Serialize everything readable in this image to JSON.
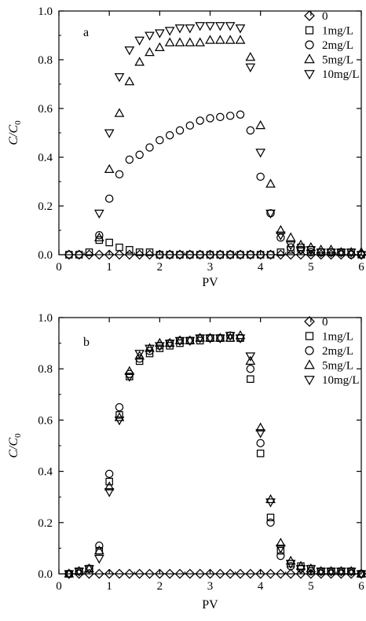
{
  "chart_data": [
    {
      "type": "scatter",
      "panel_label": "a",
      "xlabel": "PV",
      "ylabel": "C/C0",
      "ylabel_main": "C/C",
      "ylabel_sub": "0",
      "xlim": [
        0,
        6
      ],
      "ylim": [
        0,
        1.0
      ],
      "xticks": [
        "0",
        "1",
        "2",
        "3",
        "4",
        "5",
        "6"
      ],
      "yticks": [
        "0.0",
        "0.2",
        "0.4",
        "0.6",
        "0.8",
        "1.0"
      ],
      "legend_position": "top-right",
      "series": [
        {
          "name": "0",
          "marker": "diamond",
          "x": [
            0.2,
            0.4,
            0.6,
            0.8,
            1.0,
            1.2,
            1.4,
            1.6,
            1.8,
            2.0,
            2.2,
            2.4,
            2.6,
            2.8,
            3.0,
            3.2,
            3.4,
            3.6,
            3.8,
            4.0,
            4.2,
            4.4,
            4.6,
            4.8,
            5.0,
            5.2,
            5.4,
            5.6,
            5.8,
            6.0
          ],
          "y": [
            0,
            0,
            0,
            0,
            0,
            0,
            0,
            0,
            0,
            0,
            0,
            0,
            0,
            0,
            0,
            0,
            0,
            0,
            0,
            0,
            0,
            0,
            0,
            0,
            0,
            0,
            0,
            0,
            0,
            0
          ]
        },
        {
          "name": "1mg/L",
          "marker": "square",
          "x": [
            0.2,
            0.4,
            0.6,
            0.8,
            1.0,
            1.2,
            1.4,
            1.6,
            1.8,
            2.0,
            2.2,
            2.4,
            2.6,
            2.8,
            3.0,
            3.2,
            3.4,
            3.6,
            3.8,
            4.0,
            4.2,
            4.4,
            4.6,
            4.8,
            5.0,
            5.2,
            5.4,
            5.6,
            5.8,
            6.0
          ],
          "y": [
            0,
            0,
            0.01,
            0.06,
            0.05,
            0.03,
            0.02,
            0.01,
            0.01,
            0,
            0,
            0,
            0,
            0,
            0,
            0,
            0,
            0,
            0,
            0,
            0,
            0.01,
            0.02,
            0.03,
            0.02,
            0.01,
            0.01,
            0.01,
            0.01,
            0
          ]
        },
        {
          "name": "2mg/L",
          "marker": "circle",
          "x": [
            0.8,
            1.0,
            1.2,
            1.4,
            1.6,
            1.8,
            2.0,
            2.2,
            2.4,
            2.6,
            2.8,
            3.0,
            3.2,
            3.4,
            3.6,
            3.8,
            4.0,
            4.2,
            4.4,
            4.6,
            4.8,
            5.0,
            5.2,
            5.4,
            5.6,
            5.8,
            6.0
          ],
          "y": [
            0.08,
            0.23,
            0.33,
            0.39,
            0.41,
            0.44,
            0.47,
            0.49,
            0.51,
            0.53,
            0.55,
            0.56,
            0.565,
            0.57,
            0.575,
            0.51,
            0.32,
            0.17,
            0.07,
            0.03,
            0.02,
            0.01,
            0.01,
            0.01,
            0.01,
            0,
            0
          ]
        },
        {
          "name": "5mg/L",
          "marker": "triangle-up",
          "x": [
            0.8,
            1.0,
            1.2,
            1.4,
            1.6,
            1.8,
            2.0,
            2.2,
            2.4,
            2.6,
            2.8,
            3.0,
            3.2,
            3.4,
            3.6,
            3.8,
            4.0,
            4.2,
            4.4,
            4.6,
            4.8,
            5.0,
            5.2,
            5.4,
            5.6,
            5.8,
            6.0
          ],
          "y": [
            0.07,
            0.35,
            0.58,
            0.71,
            0.79,
            0.83,
            0.85,
            0.87,
            0.87,
            0.87,
            0.87,
            0.88,
            0.88,
            0.88,
            0.88,
            0.81,
            0.53,
            0.29,
            0.1,
            0.07,
            0.04,
            0.03,
            0.02,
            0.02,
            0.01,
            0.01,
            0.01
          ]
        },
        {
          "name": "10mg/L",
          "marker": "triangle-down",
          "x": [
            0.8,
            1.0,
            1.2,
            1.4,
            1.6,
            1.8,
            2.0,
            2.2,
            2.4,
            2.6,
            2.8,
            3.0,
            3.2,
            3.4,
            3.6,
            3.8,
            4.0,
            4.2,
            4.4,
            4.6,
            4.8,
            5.0,
            5.2,
            5.4,
            5.6,
            5.8,
            6.0
          ],
          "y": [
            0.17,
            0.5,
            0.73,
            0.84,
            0.88,
            0.9,
            0.91,
            0.92,
            0.93,
            0.93,
            0.94,
            0.94,
            0.94,
            0.94,
            0.93,
            0.77,
            0.42,
            0.17,
            0.08,
            0.04,
            0.02,
            0.02,
            0.01,
            0.01,
            0.01,
            0.01,
            0
          ]
        }
      ]
    },
    {
      "type": "scatter",
      "panel_label": "b",
      "xlabel": "PV",
      "ylabel": "C/C0",
      "ylabel_main": "C/C",
      "ylabel_sub": "0",
      "xlim": [
        0,
        6
      ],
      "ylim": [
        0,
        1.0
      ],
      "xticks": [
        "0",
        "1",
        "2",
        "3",
        "4",
        "5",
        "6"
      ],
      "yticks": [
        "0.0",
        "0.2",
        "0.4",
        "0.6",
        "0.8",
        "1.0"
      ],
      "legend_position": "top-right",
      "series": [
        {
          "name": "0",
          "marker": "diamond",
          "x": [
            0.2,
            0.4,
            0.6,
            0.8,
            1.0,
            1.2,
            1.4,
            1.6,
            1.8,
            2.0,
            2.2,
            2.4,
            2.6,
            2.8,
            3.0,
            3.2,
            3.4,
            3.6,
            3.8,
            4.0,
            4.2,
            4.4,
            4.6,
            4.8,
            5.0,
            5.2,
            5.4,
            5.6,
            5.8,
            6.0
          ],
          "y": [
            0,
            0,
            0,
            0,
            0,
            0,
            0,
            0,
            0,
            0,
            0,
            0,
            0,
            0,
            0,
            0,
            0,
            0,
            0,
            0,
            0,
            0,
            0,
            0,
            0,
            0,
            0,
            0,
            0,
            0
          ]
        },
        {
          "name": "1mg/L",
          "marker": "square",
          "x": [
            0.2,
            0.4,
            0.6,
            0.8,
            1.0,
            1.2,
            1.4,
            1.6,
            1.8,
            2.0,
            2.2,
            2.4,
            2.6,
            2.8,
            3.0,
            3.2,
            3.4,
            3.6,
            3.8,
            4.0,
            4.2,
            4.4,
            4.6,
            4.8,
            5.0,
            5.2,
            5.4,
            5.6,
            5.8,
            6.0
          ],
          "y": [
            0,
            0.01,
            0.02,
            0.09,
            0.36,
            0.62,
            0.77,
            0.83,
            0.86,
            0.88,
            0.89,
            0.9,
            0.91,
            0.91,
            0.92,
            0.92,
            0.92,
            0.92,
            0.76,
            0.47,
            0.22,
            0.09,
            0.04,
            0.03,
            0.02,
            0.01,
            0.01,
            0.01,
            0.01,
            0
          ]
        },
        {
          "name": "2mg/L",
          "marker": "circle",
          "x": [
            0.2,
            0.4,
            0.6,
            0.8,
            1.0,
            1.2,
            1.4,
            1.6,
            1.8,
            2.0,
            2.2,
            2.4,
            2.6,
            2.8,
            3.0,
            3.2,
            3.4,
            3.6,
            3.8,
            4.0,
            4.2,
            4.4,
            4.6,
            4.8,
            5.0,
            5.2,
            5.4,
            5.6,
            5.8,
            6.0
          ],
          "y": [
            0,
            0.01,
            0.02,
            0.11,
            0.39,
            0.65,
            0.78,
            0.84,
            0.87,
            0.89,
            0.9,
            0.91,
            0.91,
            0.92,
            0.92,
            0.92,
            0.93,
            0.92,
            0.8,
            0.51,
            0.2,
            0.07,
            0.03,
            0.02,
            0.01,
            0.01,
            0.01,
            0.01,
            0.01,
            0
          ]
        },
        {
          "name": "5mg/L",
          "marker": "triangle-up",
          "x": [
            0.2,
            0.4,
            0.6,
            0.8,
            1.0,
            1.2,
            1.4,
            1.6,
            1.8,
            2.0,
            2.2,
            2.4,
            2.6,
            2.8,
            3.0,
            3.2,
            3.4,
            3.6,
            3.8,
            4.0,
            4.2,
            4.4,
            4.6,
            4.8,
            5.0,
            5.2,
            5.4,
            5.6,
            5.8,
            6.0
          ],
          "y": [
            0,
            0.01,
            0.02,
            0.09,
            0.34,
            0.61,
            0.79,
            0.85,
            0.88,
            0.9,
            0.9,
            0.91,
            0.91,
            0.92,
            0.92,
            0.92,
            0.92,
            0.93,
            0.83,
            0.57,
            0.29,
            0.12,
            0.05,
            0.03,
            0.02,
            0.01,
            0.01,
            0.01,
            0.01,
            0
          ]
        },
        {
          "name": "10mg/L",
          "marker": "triangle-down",
          "x": [
            0.2,
            0.4,
            0.6,
            0.8,
            1.0,
            1.2,
            1.4,
            1.6,
            1.8,
            2.0,
            2.2,
            2.4,
            2.6,
            2.8,
            3.0,
            3.2,
            3.4,
            3.6,
            3.8,
            4.0,
            4.2,
            4.4,
            4.6,
            4.8,
            5.0,
            5.2,
            5.4,
            5.6,
            5.8,
            6.0
          ],
          "y": [
            0,
            0.01,
            0.02,
            0.06,
            0.32,
            0.6,
            0.77,
            0.86,
            0.88,
            0.89,
            0.9,
            0.91,
            0.91,
            0.92,
            0.92,
            0.92,
            0.93,
            0.92,
            0.85,
            0.55,
            0.28,
            0.1,
            0.04,
            0.02,
            0.02,
            0.01,
            0.01,
            0.01,
            0.01,
            0
          ]
        }
      ]
    }
  ]
}
